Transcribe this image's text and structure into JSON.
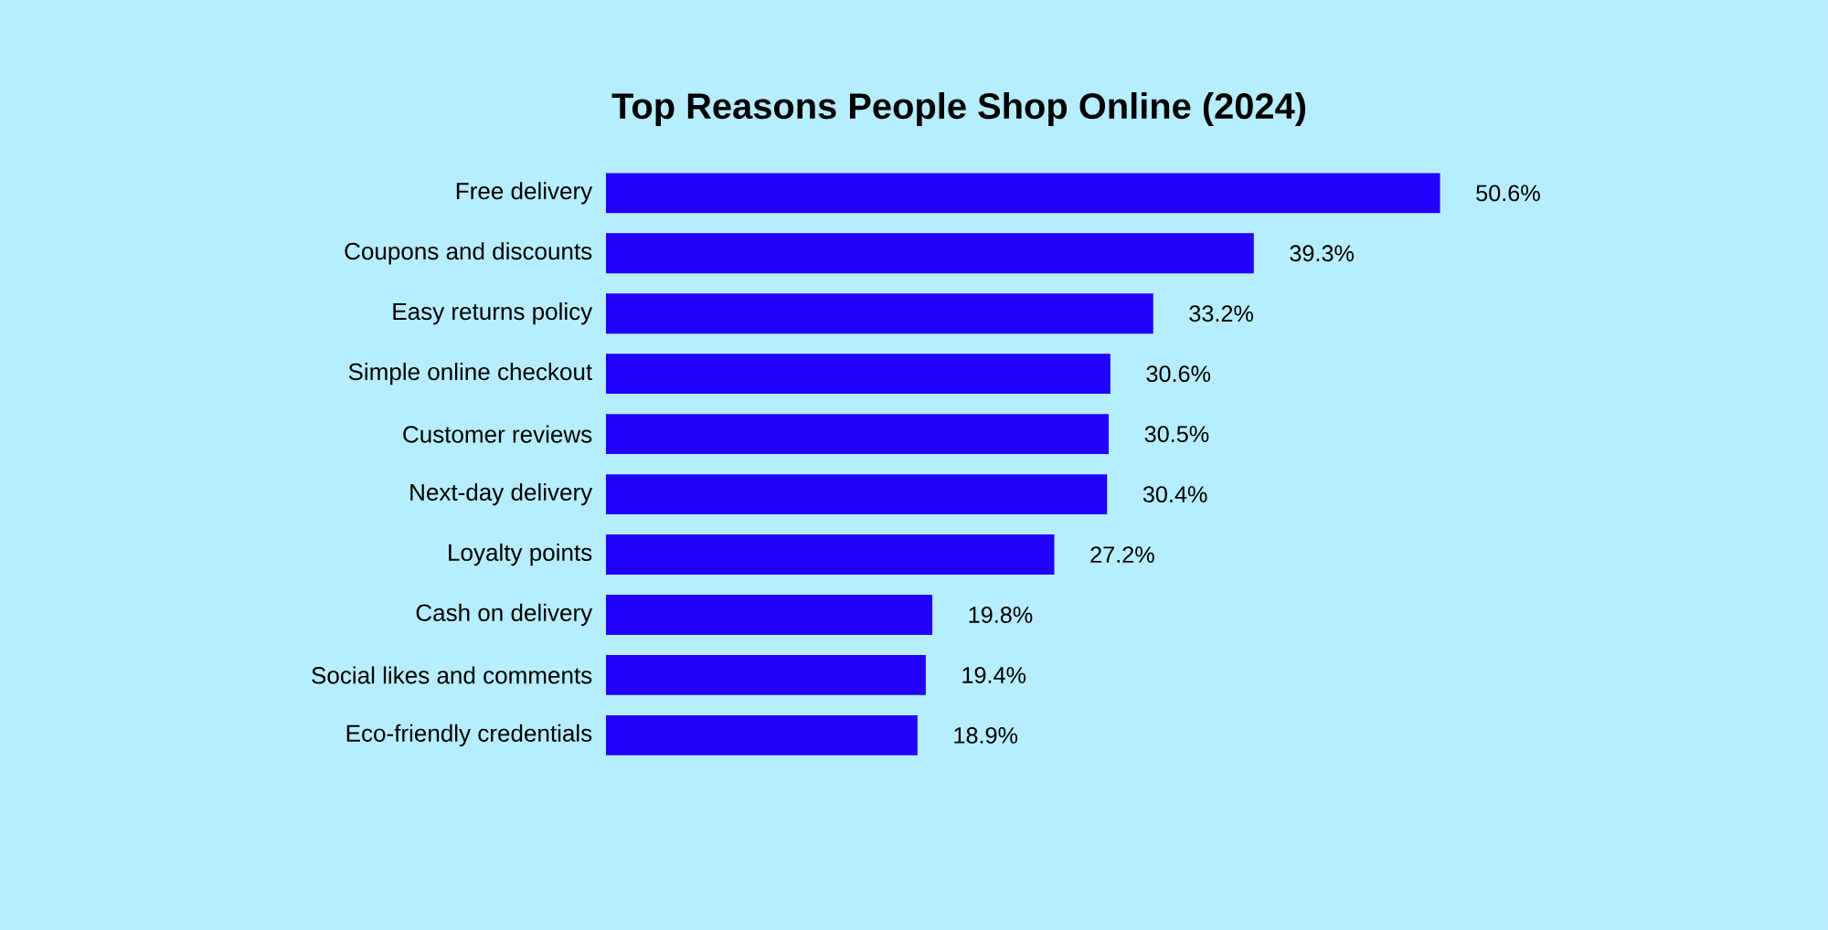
{
  "chart_data": {
    "type": "bar",
    "orientation": "horizontal",
    "title": "Top Reasons People Shop Online (2024)",
    "categories": [
      "Free delivery",
      "Coupons and discounts",
      "Easy returns policy",
      "Simple online checkout",
      "Customer reviews",
      "Next-day delivery",
      "Loyalty points",
      "Cash on delivery",
      "Social likes and comments",
      "Eco-friendly credentials"
    ],
    "values": [
      50.6,
      39.3,
      33.2,
      30.6,
      30.5,
      30.4,
      27.2,
      19.8,
      19.4,
      18.9
    ],
    "value_labels": [
      "50.6%",
      "39.3%",
      "33.2%",
      "30.6%",
      "30.5%",
      "30.4%",
      "27.2%",
      "19.8%",
      "19.4%",
      "18.9%"
    ],
    "color": "#2200fe"
  }
}
